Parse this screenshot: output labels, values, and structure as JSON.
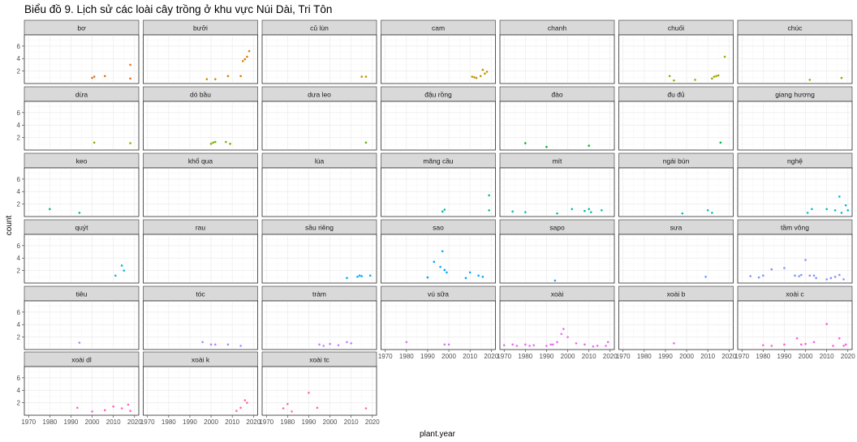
{
  "chart_data": {
    "type": "scatter",
    "title": "Biểu đồ 9. Lịch sử các loài cây trồng ở khu vực Núi Dài, Tri Tôn",
    "xlabel": "plant.year",
    "ylabel": "count",
    "xlim": [
      1968,
      2022
    ],
    "ylim": [
      0,
      7.8
    ],
    "x_ticks": [
      1970,
      1980,
      1990,
      2000,
      2010,
      2020
    ],
    "y_ticks": [
      2,
      4,
      6
    ],
    "grid": true,
    "legend": "none",
    "facets": [
      {
        "label": "bơ",
        "color": "#E2711D",
        "points": [
          [
            2000,
            0.9
          ],
          [
            2001,
            1.1
          ],
          [
            2006,
            1.2
          ],
          [
            2018,
            0.8
          ],
          [
            2018,
            3.0
          ]
        ]
      },
      {
        "label": "bưởi",
        "color": "#DB7E00",
        "points": [
          [
            1998,
            0.7
          ],
          [
            2002,
            0.7
          ],
          [
            2008,
            1.2
          ],
          [
            2014,
            1.2
          ],
          [
            2015,
            3.6
          ],
          [
            2016,
            3.9
          ],
          [
            2017,
            4.3
          ],
          [
            2018,
            5.2
          ]
        ]
      },
      {
        "label": "củ lùn",
        "color": "#CF8A00",
        "points": [
          [
            2015,
            1.1
          ],
          [
            2017,
            1.1
          ]
        ]
      },
      {
        "label": "cam",
        "color": "#C39200",
        "points": [
          [
            2011,
            1.1
          ],
          [
            2012,
            1.0
          ],
          [
            2013,
            0.9
          ],
          [
            2015,
            1.2
          ],
          [
            2016,
            2.2
          ],
          [
            2017,
            1.6
          ],
          [
            2018,
            1.9
          ]
        ]
      },
      {
        "label": "chanh",
        "color": "#B09B00",
        "points": []
      },
      {
        "label": "chuối",
        "color": "#A3A500",
        "points": [
          [
            1992,
            1.2
          ],
          [
            1994,
            0.5
          ],
          [
            2004,
            0.6
          ],
          [
            2012,
            0.8
          ],
          [
            2013,
            1.1
          ],
          [
            2014,
            1.2
          ],
          [
            2015,
            1.3
          ],
          [
            2018,
            4.3
          ]
        ]
      },
      {
        "label": "chúc",
        "color": "#95A900",
        "points": [
          [
            2002,
            0.6
          ],
          [
            2017,
            0.9
          ]
        ]
      },
      {
        "label": "dừa",
        "color": "#85AD00",
        "points": [
          [
            2001,
            1.2
          ],
          [
            2018,
            1.1
          ]
        ]
      },
      {
        "label": "dó bầu",
        "color": "#72B000",
        "points": [
          [
            2000,
            1.0
          ],
          [
            2001,
            1.2
          ],
          [
            2002,
            1.3
          ],
          [
            2007,
            1.3
          ],
          [
            2009,
            1.0
          ]
        ]
      },
      {
        "label": "dưa leo",
        "color": "#5BB300",
        "points": [
          [
            2017,
            1.2
          ]
        ]
      },
      {
        "label": "đậu rồng",
        "color": "#39B600",
        "points": []
      },
      {
        "label": "đào",
        "color": "#00B81F",
        "points": [
          [
            1980,
            1.1
          ],
          [
            1990,
            0.5
          ],
          [
            2010,
            0.7
          ]
        ]
      },
      {
        "label": "đu đủ",
        "color": "#00BA42",
        "points": [
          [
            2016,
            1.2
          ]
        ]
      },
      {
        "label": "giang hương",
        "color": "#00BC59",
        "points": []
      },
      {
        "label": "keo",
        "color": "#00BE6C",
        "points": [
          [
            1980,
            1.2
          ],
          [
            1994,
            0.6
          ]
        ]
      },
      {
        "label": "khổ qua",
        "color": "#00BF7D",
        "points": []
      },
      {
        "label": "lúa",
        "color": "#00C08D",
        "points": []
      },
      {
        "label": "mãng cầu",
        "color": "#00C19C",
        "points": [
          [
            1997,
            0.8
          ],
          [
            1998,
            1.1
          ],
          [
            2019,
            3.4
          ],
          [
            2019,
            1.0
          ]
        ]
      },
      {
        "label": "mít",
        "color": "#00C1AB",
        "points": [
          [
            1974,
            0.8
          ],
          [
            1980,
            0.7
          ],
          [
            1995,
            0.5
          ],
          [
            2002,
            1.2
          ],
          [
            2008,
            0.9
          ],
          [
            2010,
            1.2
          ],
          [
            2011,
            0.7
          ],
          [
            2016,
            1.0
          ]
        ]
      },
      {
        "label": "ngải bún",
        "color": "#00BFC4",
        "points": [
          [
            1998,
            0.5
          ],
          [
            2010,
            1.0
          ],
          [
            2012,
            0.6
          ]
        ]
      },
      {
        "label": "nghệ",
        "color": "#00BCD8",
        "points": [
          [
            2001,
            0.6
          ],
          [
            2003,
            1.2
          ],
          [
            2010,
            1.2
          ],
          [
            2014,
            1.0
          ],
          [
            2016,
            3.2
          ],
          [
            2017,
            0.6
          ],
          [
            2019,
            1.8
          ],
          [
            2020,
            1.0
          ]
        ]
      },
      {
        "label": "quýt",
        "color": "#00B8E7",
        "points": [
          [
            2011,
            1.2
          ],
          [
            2014,
            2.8
          ],
          [
            2015,
            2.0
          ]
        ]
      },
      {
        "label": "rau",
        "color": "#00B4F0",
        "points": []
      },
      {
        "label": "sầu riêng",
        "color": "#00AFF8",
        "points": [
          [
            2008,
            0.8
          ],
          [
            2013,
            1.0
          ],
          [
            2014,
            1.2
          ],
          [
            2015,
            1.1
          ],
          [
            2019,
            1.2
          ]
        ]
      },
      {
        "label": "sao",
        "color": "#00A9FF",
        "points": [
          [
            1990,
            0.9
          ],
          [
            1993,
            3.4
          ],
          [
            1996,
            2.6
          ],
          [
            1997,
            5.1
          ],
          [
            1998,
            2.1
          ],
          [
            1999,
            1.7
          ],
          [
            2008,
            0.8
          ],
          [
            2010,
            1.7
          ],
          [
            2014,
            1.2
          ],
          [
            2016,
            1.0
          ]
        ]
      },
      {
        "label": "sapo",
        "color": "#26A2FF",
        "points": [
          [
            1994,
            0.4
          ]
        ]
      },
      {
        "label": "sưa",
        "color": "#619CFF",
        "points": [
          [
            2009,
            1.0
          ]
        ]
      },
      {
        "label": "tầm vông",
        "color": "#8093FF",
        "points": [
          [
            1974,
            1.1
          ],
          [
            1978,
            0.9
          ],
          [
            1980,
            1.2
          ],
          [
            1984,
            2.2
          ],
          [
            1990,
            2.4
          ],
          [
            1995,
            1.2
          ],
          [
            1997,
            1.1
          ],
          [
            1998,
            1.3
          ],
          [
            2000,
            3.7
          ],
          [
            2002,
            1.2
          ],
          [
            2004,
            1.2
          ],
          [
            2005,
            0.8
          ],
          [
            2010,
            0.6
          ],
          [
            2012,
            0.8
          ],
          [
            2014,
            1.0
          ],
          [
            2016,
            1.3
          ],
          [
            2018,
            0.6
          ]
        ]
      },
      {
        "label": "tiêu",
        "color": "#9B8EFF",
        "points": [
          [
            1994,
            1.1
          ]
        ]
      },
      {
        "label": "tóc",
        "color": "#B385FF",
        "points": [
          [
            1996,
            1.2
          ],
          [
            2000,
            0.8
          ],
          [
            2002,
            0.8
          ],
          [
            2008,
            0.8
          ],
          [
            2014,
            0.6
          ]
        ]
      },
      {
        "label": "tràm",
        "color": "#C77CFF",
        "points": [
          [
            1995,
            0.8
          ],
          [
            1997,
            0.6
          ],
          [
            2000,
            0.9
          ],
          [
            2004,
            0.7
          ],
          [
            2008,
            1.2
          ],
          [
            2010,
            1.0
          ]
        ]
      },
      {
        "label": "vú sữa",
        "color": "#D874FD",
        "points": [
          [
            1980,
            1.2
          ],
          [
            1998,
            0.8
          ],
          [
            2000,
            0.8
          ]
        ]
      },
      {
        "label": "xoài",
        "color": "#E76BF3",
        "points": [
          [
            1970,
            0.7
          ],
          [
            1974,
            0.8
          ],
          [
            1976,
            0.6
          ],
          [
            1980,
            0.8
          ],
          [
            1982,
            0.6
          ],
          [
            1984,
            0.7
          ],
          [
            1990,
            0.6
          ],
          [
            1992,
            0.8
          ],
          [
            1993,
            0.8
          ],
          [
            1995,
            1.2
          ],
          [
            1997,
            2.5
          ],
          [
            1998,
            3.3
          ],
          [
            2000,
            2.0
          ],
          [
            2004,
            1.0
          ],
          [
            2008,
            0.8
          ],
          [
            2012,
            0.5
          ],
          [
            2014,
            0.6
          ],
          [
            2018,
            0.6
          ],
          [
            2019,
            1.2
          ]
        ]
      },
      {
        "label": "xoài b",
        "color": "#F365E7",
        "points": [
          [
            1994,
            1.0
          ]
        ]
      },
      {
        "label": "xoài c",
        "color": "#FB61D7",
        "points": [
          [
            1980,
            0.7
          ],
          [
            1984,
            0.6
          ],
          [
            1990,
            0.8
          ],
          [
            1996,
            1.8
          ],
          [
            1998,
            0.8
          ],
          [
            2000,
            0.9
          ],
          [
            2004,
            1.2
          ],
          [
            2010,
            4.1
          ],
          [
            2013,
            0.6
          ],
          [
            2016,
            1.8
          ],
          [
            2018,
            0.6
          ],
          [
            2019,
            0.8
          ]
        ]
      },
      {
        "label": "xoài dl",
        "color": "#FF63C3",
        "points": [
          [
            1993,
            1.2
          ],
          [
            2000,
            0.6
          ],
          [
            2006,
            0.8
          ],
          [
            2010,
            1.4
          ],
          [
            2014,
            1.1
          ],
          [
            2017,
            1.7
          ],
          [
            2018,
            0.7
          ]
        ]
      },
      {
        "label": "xoài k",
        "color": "#FF67A4",
        "points": [
          [
            2012,
            0.7
          ],
          [
            2014,
            1.2
          ],
          [
            2016,
            2.4
          ],
          [
            2017,
            2.0
          ]
        ]
      },
      {
        "label": "xoài tc",
        "color": "#FF6C91",
        "points": [
          [
            1978,
            1.1
          ],
          [
            1980,
            1.8
          ],
          [
            1982,
            0.6
          ],
          [
            1990,
            3.6
          ],
          [
            1994,
            1.2
          ],
          [
            2017,
            1.1
          ]
        ]
      }
    ]
  }
}
